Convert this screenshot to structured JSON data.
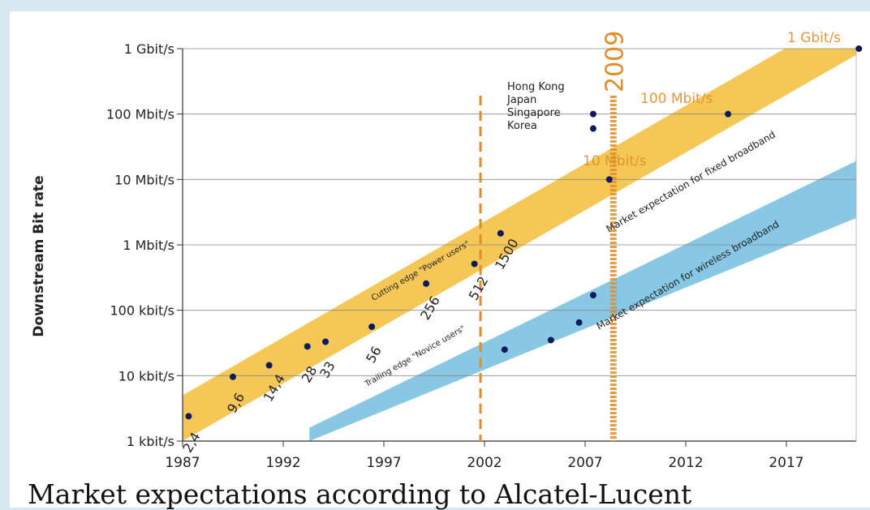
{
  "chart_data": {
    "type": "scatter",
    "title": "Market expectations according to Alcatel-Lucent",
    "ylabel": "Downstream Bit rate",
    "xlabel": "",
    "yscale": "log",
    "ylim_kbit": [
      1,
      1000000
    ],
    "xlim": [
      1987,
      2021
    ],
    "y_ticks": [
      {
        "label": "1 kbit/s",
        "value": 1
      },
      {
        "label": "10 kbit/s",
        "value": 10
      },
      {
        "label": "100 kbit/s",
        "value": 100
      },
      {
        "label": "1 Mbit/s",
        "value": 1000
      },
      {
        "label": "10 Mbit/s",
        "value": 10000
      },
      {
        "label": "100 Mbit/s",
        "value": 100000
      },
      {
        "label": "1 Gbit/s",
        "value": 1000000
      }
    ],
    "x_ticks": [
      1987,
      1992,
      1997,
      2002,
      2007,
      2012,
      2017
    ],
    "grid": "horizontal",
    "fixed_points": [
      {
        "year": 1987.3,
        "kbit": 2.4,
        "label": "2,4"
      },
      {
        "year": 1989.5,
        "kbit": 9.6,
        "label": "9,6"
      },
      {
        "year": 1991.3,
        "kbit": 14.4,
        "label": "14,4"
      },
      {
        "year": 1993.2,
        "kbit": 28,
        "label": "28"
      },
      {
        "year": 1994.1,
        "kbit": 33,
        "label": "33"
      },
      {
        "year": 1996.4,
        "kbit": 56,
        "label": "56"
      },
      {
        "year": 1999.1,
        "kbit": 256,
        "label": "256"
      },
      {
        "year": 2001.5,
        "kbit": 512,
        "label": "512"
      },
      {
        "year": 2002.8,
        "kbit": 1500,
        "label": "1500"
      },
      {
        "year": 2008.2,
        "kbit": 10000,
        "label": ""
      },
      {
        "year": 2014.1,
        "kbit": 100000,
        "label": ""
      },
      {
        "year": 2020.6,
        "kbit": 1000000,
        "label": ""
      }
    ],
    "country_points": [
      {
        "year": 2007.4,
        "kbit": 100000
      },
      {
        "year": 2007.4,
        "kbit": 60000
      }
    ],
    "wireless_points": [
      {
        "year": 2003.0,
        "kbit": 25
      },
      {
        "year": 2005.3,
        "kbit": 35
      },
      {
        "year": 2006.7,
        "kbit": 65
      },
      {
        "year": 2007.4,
        "kbit": 170
      }
    ],
    "bands": [
      {
        "name": "Market expectation for fixed broadband",
        "color": "#f3c249",
        "start": [
          1987,
          1,
          5
        ],
        "end": [
          2021,
          1000000,
          5300000
        ]
      },
      {
        "name": "Market expectation for wireless broadband",
        "color": "#7ec3e2",
        "start": [
          1993.3,
          1,
          1.6
        ],
        "end": [
          2021,
          3000,
          23000
        ]
      }
    ],
    "vertical_markers": [
      {
        "year": 2001.8
      },
      {
        "year": 2008.4,
        "label": "2009"
      }
    ],
    "band_annotations": {
      "upper_edge": "Cutting edge \"Power users\"",
      "lower_edge": "Trailing edge \"Novice users\"",
      "fixed": "Market expectation for fixed broadband",
      "wireless": "Market expectation for wireless broadband"
    },
    "rate_labels": [
      "1 Gbit/s",
      "100 Mbit/s",
      "10 Mbit/s"
    ],
    "countries": [
      "Hong Kong",
      "Japan",
      "Singapore",
      "Korea"
    ],
    "colors": {
      "fixed_band": "#f3c249",
      "wireless_band": "#7ec3e2",
      "marker": "#e08d2a",
      "point": "#0f1a5c"
    }
  }
}
